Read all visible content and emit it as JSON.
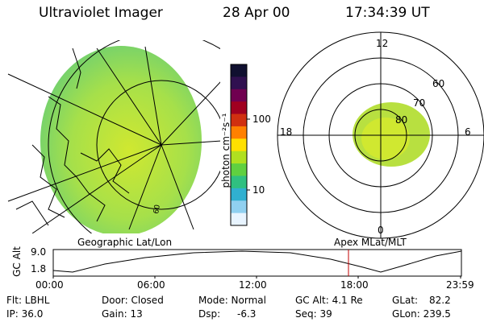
{
  "header": {
    "instrument": "Ultraviolet Imager",
    "date": "28 Apr 00",
    "time": "17:34:39 UT"
  },
  "colorbar": {
    "label": "photon cm⁻²s⁻¹",
    "ticks": [
      "100",
      "10"
    ],
    "colors": [
      "#101030",
      "#301050",
      "#700050",
      "#a00020",
      "#d03010",
      "#ff8000",
      "#ffe000",
      "#b0e020",
      "#60d040",
      "#30c080",
      "#30b0d0",
      "#90d0f0",
      "#e8f4ff"
    ]
  },
  "geo_map": {
    "caption": "Geographic Lat/Lon",
    "fill_color": "#a6e04a"
  },
  "polar_plot": {
    "caption": "Apex MLat/MLT",
    "mlt_labels": {
      "top": "12",
      "left": "18",
      "right": "6",
      "bottom": "0"
    },
    "lat_labels": [
      "60",
      "70",
      "80"
    ],
    "oval_color": "#b8e040"
  },
  "gc_alt_plot": {
    "ylabel": "GC Alt",
    "yticks": [
      "9.0",
      "1.8"
    ],
    "xticks": [
      "00:00",
      "06:00",
      "12:00",
      "18:00",
      "23:59"
    ],
    "current_time_marker": "17:34"
  },
  "info": {
    "flt": "Flt: LBHL",
    "ip": "IP: 36.0",
    "door": "Door: Closed",
    "gain": "Gain: 13",
    "mode": "Mode: Normal",
    "dsp": "Dsp:",
    "dsp_value": "-6.3",
    "gc_alt": "GC Alt: 4.1 Re",
    "seq": "Seq: 39",
    "glat": "GLat:",
    "glat_value": "82.2",
    "glon": "GLon: 239.5"
  }
}
